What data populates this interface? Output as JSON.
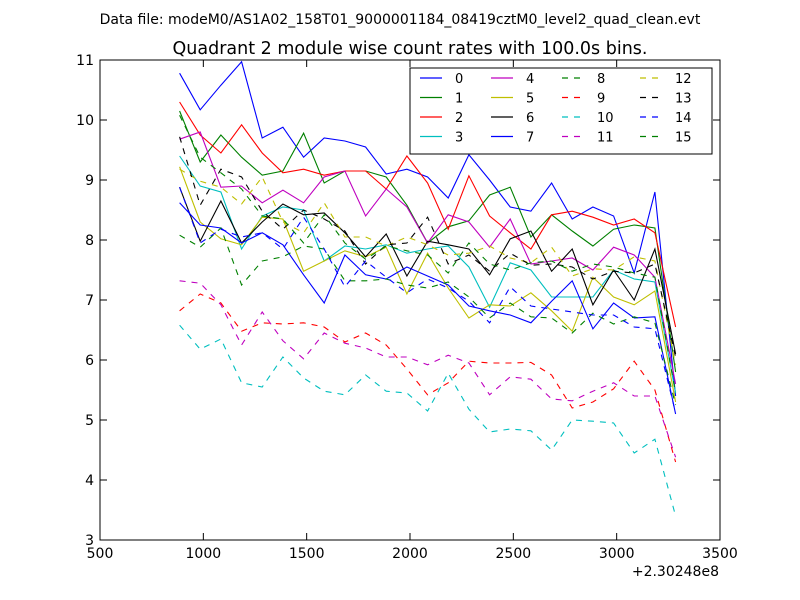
{
  "chart_data": {
    "type": "line",
    "suptitle": "Data file: modeM0/AS1A02_158T01_9000001184_08419cztM0_level2_quad_clean.evt",
    "title": "Quadrant 2 module wise count rates with 100.0s bins.",
    "xlabel": "",
    "ylabel": "",
    "x_offset_label": "+2.30248e8",
    "xlim": [
      500,
      3500
    ],
    "ylim": [
      3,
      11
    ],
    "xticks": [
      500,
      1000,
      1500,
      2000,
      2500,
      3000,
      3500
    ],
    "yticks": [
      3,
      4,
      5,
      6,
      7,
      8,
      9,
      10,
      11
    ],
    "legend_position": "top-right",
    "legend_columns": 4,
    "x": [
      885,
      985,
      1085,
      1185,
      1285,
      1385,
      1485,
      1585,
      1685,
      1785,
      1885,
      1985,
      2085,
      2185,
      2285,
      2385,
      2485,
      2585,
      2685,
      2785,
      2885,
      2985,
      3085,
      3185,
      3285
    ],
    "series": [
      {
        "name": "0",
        "color": "#0000ff",
        "dash": "solid",
        "values": [
          10.78,
          10.17,
          10.58,
          10.97,
          9.7,
          9.88,
          9.38,
          9.7,
          9.65,
          9.55,
          9.1,
          9.18,
          9.05,
          8.7,
          9.42,
          9.0,
          8.55,
          8.48,
          8.95,
          8.35,
          8.55,
          8.4,
          7.45,
          8.8,
          5.4
        ]
      },
      {
        "name": "1",
        "color": "#008000",
        "dash": "solid",
        "values": [
          10.15,
          9.3,
          9.75,
          9.38,
          9.08,
          9.15,
          9.78,
          8.95,
          9.15,
          9.15,
          9.05,
          8.58,
          7.95,
          8.22,
          8.32,
          8.75,
          8.88,
          8.05,
          8.42,
          8.15,
          7.9,
          8.18,
          8.25,
          8.2,
          5.8
        ]
      },
      {
        "name": "2",
        "color": "#ff0000",
        "dash": "solid",
        "values": [
          10.3,
          9.75,
          9.45,
          9.92,
          9.45,
          9.12,
          9.18,
          9.08,
          9.15,
          9.15,
          8.85,
          9.4,
          8.95,
          8.18,
          9.07,
          8.4,
          8.12,
          7.85,
          8.42,
          8.48,
          8.38,
          8.25,
          8.35,
          8.12,
          6.55
        ]
      },
      {
        "name": "3",
        "color": "#00bfbf",
        "dash": "solid",
        "values": [
          9.4,
          8.9,
          8.8,
          7.85,
          8.4,
          8.55,
          8.5,
          7.65,
          7.9,
          7.85,
          7.92,
          7.78,
          7.85,
          7.9,
          7.55,
          6.88,
          7.62,
          7.5,
          7.05,
          7.05,
          7.05,
          7.5,
          7.35,
          7.3,
          5.45
        ]
      },
      {
        "name": "4",
        "color": "#bf00bf",
        "dash": "solid",
        "values": [
          9.68,
          9.8,
          8.88,
          8.9,
          8.62,
          8.83,
          8.62,
          9.05,
          9.15,
          8.4,
          8.85,
          8.55,
          7.95,
          8.42,
          8.3,
          7.88,
          8.35,
          7.6,
          7.65,
          7.7,
          7.5,
          7.88,
          7.75,
          7.38,
          5.6
        ]
      },
      {
        "name": "5",
        "color": "#bfbf00",
        "dash": "solid",
        "values": [
          9.22,
          8.3,
          8.02,
          7.92,
          8.38,
          8.35,
          7.48,
          7.65,
          7.82,
          7.72,
          7.88,
          7.1,
          7.78,
          7.2,
          6.7,
          6.92,
          6.9,
          7.12,
          6.82,
          6.48,
          7.38,
          7.05,
          6.92,
          7.15,
          5.3
        ]
      },
      {
        "name": "6",
        "color": "#000000",
        "dash": "solid",
        "values": [
          8.88,
          7.98,
          8.65,
          7.95,
          8.3,
          8.6,
          8.42,
          8.45,
          8.12,
          7.72,
          8.1,
          7.4,
          7.98,
          7.92,
          7.85,
          7.42,
          8.02,
          8.15,
          7.48,
          7.85,
          6.92,
          7.5,
          7.0,
          7.85,
          6.1
        ]
      },
      {
        "name": "7",
        "color": "#0000ff",
        "dash": "solid",
        "values": [
          8.62,
          8.25,
          8.2,
          7.95,
          8.12,
          7.92,
          7.42,
          6.95,
          7.75,
          7.42,
          7.35,
          7.55,
          7.4,
          7.25,
          6.9,
          6.82,
          6.75,
          6.62,
          6.98,
          7.32,
          6.52,
          6.95,
          6.7,
          6.72,
          5.1
        ]
      },
      {
        "name": "8",
        "color": "#008000",
        "dash": "dashed",
        "values": [
          8.08,
          7.88,
          8.2,
          7.25,
          7.65,
          7.72,
          7.9,
          7.85,
          7.32,
          7.32,
          7.35,
          7.25,
          7.2,
          7.3,
          7.05,
          6.7,
          6.95,
          6.72,
          6.7,
          6.45,
          6.78,
          6.6,
          6.72,
          6.62,
          5.25
        ]
      },
      {
        "name": "9",
        "color": "#ff0000",
        "dash": "dashed",
        "values": [
          6.82,
          7.1,
          6.95,
          6.48,
          6.62,
          6.6,
          6.62,
          6.55,
          6.3,
          6.45,
          6.25,
          5.85,
          5.42,
          5.62,
          5.98,
          5.95,
          5.95,
          5.96,
          5.75,
          5.2,
          5.3,
          5.52,
          5.98,
          5.5,
          4.3
        ]
      },
      {
        "name": "10",
        "color": "#00bfbf",
        "dash": "dashed",
        "values": [
          6.58,
          6.18,
          6.35,
          5.62,
          5.55,
          6.05,
          5.7,
          5.48,
          5.42,
          5.75,
          5.48,
          5.45,
          5.15,
          5.78,
          5.18,
          4.8,
          4.85,
          4.82,
          4.5,
          5.0,
          4.98,
          4.95,
          4.45,
          4.68,
          3.4
        ]
      },
      {
        "name": "11",
        "color": "#bf00bf",
        "dash": "dashed",
        "values": [
          7.32,
          7.28,
          6.92,
          6.25,
          6.8,
          6.32,
          6.02,
          6.45,
          6.28,
          6.2,
          6.05,
          6.05,
          5.92,
          6.08,
          5.95,
          5.42,
          5.72,
          5.68,
          5.35,
          5.32,
          5.48,
          5.62,
          5.4,
          5.4,
          4.38
        ]
      },
      {
        "name": "12",
        "color": "#bfbf00",
        "dash": "dashed",
        "values": [
          9.18,
          8.98,
          8.88,
          8.6,
          9.05,
          8.3,
          8.12,
          8.62,
          8.05,
          8.05,
          7.9,
          8.05,
          7.92,
          7.75,
          7.78,
          7.9,
          7.7,
          7.62,
          7.88,
          7.4,
          7.52,
          7.5,
          7.72,
          7.65,
          5.92
        ]
      },
      {
        "name": "13",
        "color": "#000000",
        "dash": "dashed",
        "values": [
          9.72,
          8.58,
          9.18,
          9.05,
          8.48,
          8.18,
          8.5,
          8.35,
          8.15,
          7.6,
          7.92,
          7.95,
          8.38,
          7.6,
          7.75,
          7.48,
          7.78,
          7.58,
          7.6,
          7.55,
          7.35,
          7.48,
          7.45,
          7.6,
          6.05
        ]
      },
      {
        "name": "14",
        "color": "#0000ff",
        "dash": "dashed",
        "values": [
          8.88,
          7.95,
          8.18,
          8.05,
          8.12,
          7.85,
          8.38,
          7.85,
          7.22,
          7.65,
          7.38,
          7.12,
          7.35,
          7.2,
          6.98,
          6.62,
          7.22,
          6.9,
          6.85,
          6.8,
          6.75,
          6.75,
          6.55,
          6.52,
          5.12
        ]
      },
      {
        "name": "15",
        "color": "#008000",
        "dash": "dashed",
        "values": [
          10.08,
          9.38,
          9.12,
          8.85,
          8.4,
          8.35,
          7.95,
          8.42,
          7.95,
          7.68,
          7.9,
          7.82,
          7.75,
          7.45,
          7.95,
          7.6,
          7.5,
          7.62,
          7.65,
          7.48,
          7.6,
          7.55,
          7.45,
          7.38,
          5.45
        ]
      }
    ]
  }
}
